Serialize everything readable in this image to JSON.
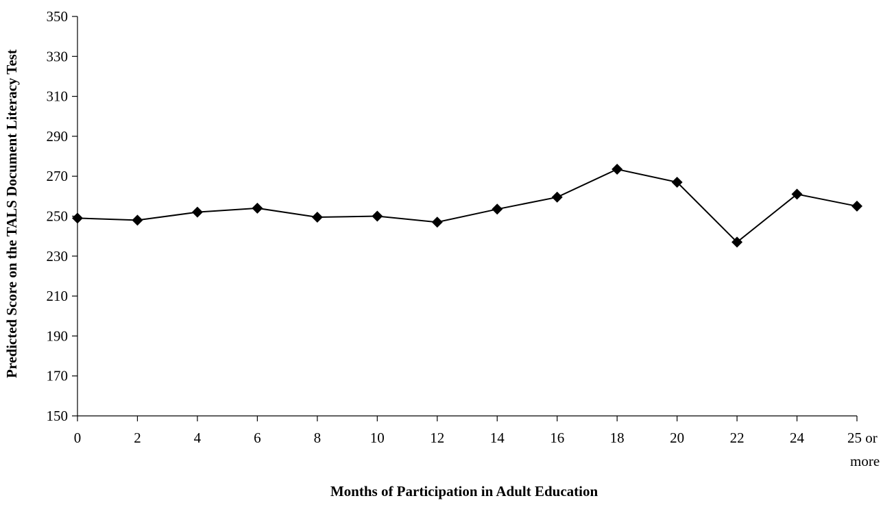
{
  "chart_data": {
    "type": "line",
    "title": "",
    "xlabel": "Months of Participation in Adult Education",
    "ylabel": "Predicted Score on the TALS Document Literacy Test",
    "categories": [
      {
        "line1": "0",
        "line2": ""
      },
      {
        "line1": "2",
        "line2": ""
      },
      {
        "line1": "4",
        "line2": ""
      },
      {
        "line1": "6",
        "line2": ""
      },
      {
        "line1": "8",
        "line2": ""
      },
      {
        "line1": "10",
        "line2": ""
      },
      {
        "line1": "12",
        "line2": ""
      },
      {
        "line1": "14",
        "line2": ""
      },
      {
        "line1": "16",
        "line2": ""
      },
      {
        "line1": "18",
        "line2": ""
      },
      {
        "line1": "20",
        "line2": ""
      },
      {
        "line1": "22",
        "line2": ""
      },
      {
        "line1": "24",
        "line2": ""
      },
      {
        "line1": "25 or",
        "line2": "more"
      }
    ],
    "series": [
      {
        "values": [
          249,
          248,
          252,
          254,
          249.5,
          250,
          247,
          253.5,
          259.5,
          273.5,
          267,
          237,
          261,
          255
        ]
      }
    ],
    "ylim": [
      150,
      350
    ],
    "yticks": [
      150,
      170,
      190,
      210,
      230,
      250,
      270,
      290,
      310,
      330,
      350
    ],
    "grid": false,
    "legend": "none",
    "marker": "diamond",
    "line_color": "#000000"
  }
}
